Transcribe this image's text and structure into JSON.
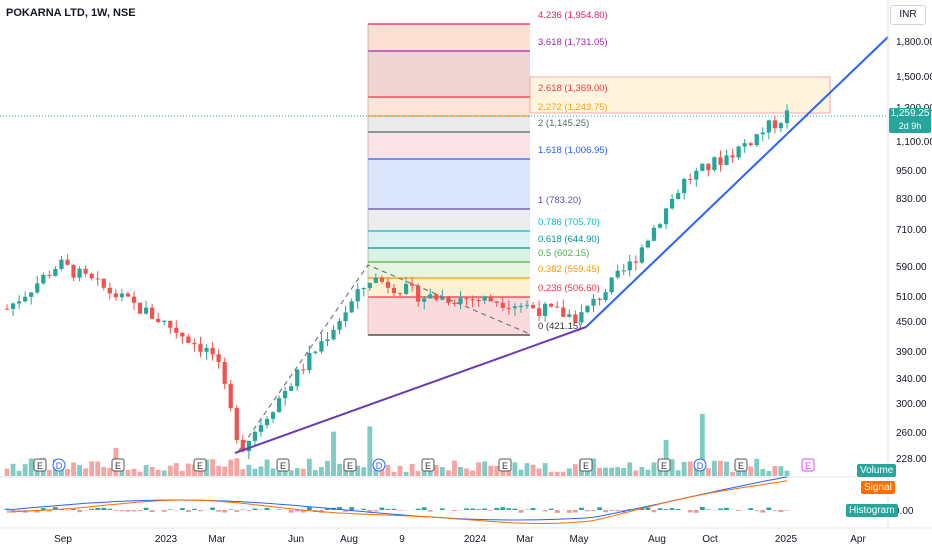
{
  "header": {
    "title": "POKARNA LTD, 1W, NSE",
    "currency": "INR"
  },
  "price_tag": {
    "price": "1,259.25",
    "countdown": "2d 9h"
  },
  "indicator_tags": {
    "volume": "Volume",
    "signal": "Signal",
    "histogram": "Histogram",
    "macd_zero": "0.00"
  },
  "colors": {
    "up": "#26a69a",
    "down": "#ef5350",
    "trendline": "#2962ff",
    "support": "#673ab7"
  },
  "chart_data": {
    "type": "candlestick",
    "title": "POKARNA LTD, 1W, NSE",
    "y_scale": "log",
    "yticks": [
      "1,800.00",
      "1,500.00",
      "1,300.00",
      "1,100.00",
      "950.00",
      "830.00",
      "710.00",
      "590.00",
      "510.00",
      "450.00",
      "390.00",
      "340.00",
      "300.00",
      "260.00",
      "228.00"
    ],
    "xticks": [
      "Sep",
      "2023",
      "Mar",
      "Jun",
      "Aug",
      "9",
      "2024",
      "Mar",
      "May",
      "Aug",
      "Oct",
      "2025",
      "Apr"
    ],
    "last_price": 1259.25,
    "fib_extension_levels": [
      {
        "ratio": "0",
        "price": "421.15"
      },
      {
        "ratio": "0.236",
        "price": "506.60"
      },
      {
        "ratio": "0.382",
        "price": "559.45"
      },
      {
        "ratio": "0.5",
        "price": "602.15"
      },
      {
        "ratio": "0.618",
        "price": "644.90"
      },
      {
        "ratio": "0.786",
        "price": "705.70"
      },
      {
        "ratio": "1",
        "price": "783.20"
      },
      {
        "ratio": "1.618",
        "price": "1,006.95"
      },
      {
        "ratio": "2",
        "price": "1,145.25"
      },
      {
        "ratio": "2.272",
        "price": "1,243.75"
      },
      {
        "ratio": "2.618",
        "price": "1,369.00"
      },
      {
        "ratio": "3.618",
        "price": "1,731.05"
      },
      {
        "ratio": "4.236",
        "price": "1,954.80"
      }
    ],
    "candles_close_approx": [
      {
        "period": "2022-06",
        "close": 480
      },
      {
        "period": "2022-08",
        "close": 600
      },
      {
        "period": "2022-10",
        "close": 520
      },
      {
        "period": "2022-12",
        "close": 450
      },
      {
        "period": "2023-02",
        "close": 380
      },
      {
        "period": "2023-03",
        "close": 240
      },
      {
        "period": "2023-06",
        "close": 400
      },
      {
        "period": "2023-08",
        "close": 560
      },
      {
        "period": "2023-10",
        "close": 510
      },
      {
        "period": "2024-01",
        "close": 500
      },
      {
        "period": "2024-04",
        "close": 460
      },
      {
        "period": "2024-06",
        "close": 600
      },
      {
        "period": "2024-08",
        "close": 900
      },
      {
        "period": "2024-10",
        "close": 1050
      },
      {
        "period": "2024-12",
        "close": 1259.25
      }
    ],
    "earnings_markers": [
      "E",
      "D",
      "E",
      "E",
      "E",
      "E",
      "D",
      "E",
      "E",
      "E",
      "E",
      "D",
      "E",
      "E"
    ],
    "indicators": [
      "Volume",
      "MACD"
    ]
  }
}
